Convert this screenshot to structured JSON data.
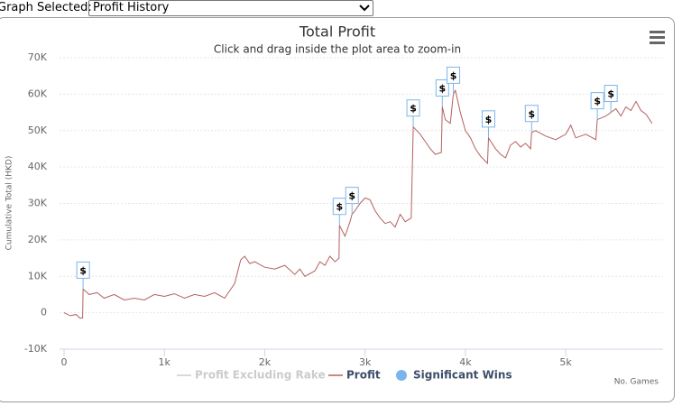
{
  "header": {
    "label": "Graph Selected:",
    "selected": "Profit History"
  },
  "chart_data": {
    "type": "line",
    "title": "Total Profit",
    "subtitle": "Click and drag inside the plot area to zoom-in",
    "ylabel": "Cumulative Total (HKD)",
    "xlabel": "No. Games",
    "xlim": [
      -45,
      5970
    ],
    "ylim": [
      -10000,
      70000
    ],
    "yticks": [
      {
        "value": -10000,
        "label": "-10K"
      },
      0,
      {
        "value": 10000,
        "label": "10K"
      },
      {
        "value": 20000,
        "label": "20K"
      },
      {
        "value": 30000,
        "label": "30K"
      },
      {
        "value": 40000,
        "label": "40K"
      },
      {
        "value": 50000,
        "label": "50K"
      },
      {
        "value": 60000,
        "label": "60K"
      },
      {
        "value": 70000,
        "label": "70K"
      }
    ],
    "xticks": [
      0,
      {
        "value": 1000,
        "label": "1k"
      },
      {
        "value": 2000,
        "label": "2k"
      },
      {
        "value": 3000,
        "label": "3k"
      },
      {
        "value": 4000,
        "label": "4k"
      },
      {
        "value": 5000,
        "label": "5k"
      }
    ],
    "grid": true,
    "series": [
      {
        "name": "Profit Excluding Rake",
        "color": "#cccccc",
        "hidden": true
      },
      {
        "name": "Profit",
        "color": "#b5605f",
        "x": [
          0,
          60,
          120,
          160,
          185,
          190,
          250,
          330,
          400,
          500,
          600,
          700,
          800,
          900,
          1000,
          1100,
          1200,
          1300,
          1400,
          1500,
          1600,
          1650,
          1700,
          1760,
          1800,
          1850,
          1900,
          2000,
          2100,
          2200,
          2300,
          2350,
          2400,
          2500,
          2550,
          2600,
          2650,
          2700,
          2740,
          2745,
          2800,
          2850,
          2870,
          2900,
          2950,
          3000,
          3050,
          3100,
          3150,
          3200,
          3250,
          3300,
          3350,
          3400,
          3460,
          3480,
          3550,
          3600,
          3650,
          3700,
          3760,
          3770,
          3800,
          3850,
          3880,
          3900,
          3950,
          4000,
          4050,
          4100,
          4150,
          4220,
          4230,
          4300,
          4350,
          4400,
          4450,
          4500,
          4550,
          4600,
          4650,
          4660,
          4700,
          4800,
          4900,
          5000,
          5050,
          5100,
          5200,
          5300,
          5315,
          5400,
          5450,
          5500,
          5550,
          5600,
          5650,
          5700,
          5750,
          5800,
          5860
        ],
        "values": [
          0,
          -800,
          -500,
          -1500,
          -1400,
          6500,
          5000,
          5500,
          4000,
          5000,
          3500,
          4000,
          3500,
          5000,
          4500,
          5200,
          4000,
          5000,
          4500,
          5500,
          4000,
          6000,
          8000,
          14500,
          15500,
          13500,
          14000,
          12500,
          12000,
          13000,
          10500,
          12000,
          10000,
          11500,
          14000,
          13000,
          15500,
          14000,
          15000,
          24000,
          21000,
          25000,
          27000,
          28000,
          30000,
          31500,
          31000,
          28000,
          26000,
          24500,
          25000,
          23500,
          27000,
          25000,
          26000,
          51000,
          49000,
          47000,
          45000,
          43500,
          44000,
          56500,
          53000,
          52000,
          60000,
          61000,
          55000,
          50000,
          48000,
          45000,
          43000,
          41000,
          48000,
          45000,
          43500,
          42500,
          46000,
          47000,
          45500,
          46500,
          45000,
          49500,
          50000,
          48500,
          47500,
          49000,
          51500,
          48000,
          49000,
          47500,
          53000,
          54000,
          55000,
          56000,
          54000,
          56500,
          55500,
          58000,
          55500,
          54500,
          52000
        ]
      },
      {
        "name": "Significant Wins",
        "type": "flags",
        "color": "#7cb5ec",
        "flag_label": "$",
        "x": [
          190,
          2745,
          2870,
          3480,
          3770,
          3880,
          4230,
          4660,
          5315,
          5450
        ],
        "values": [
          6500,
          24000,
          27000,
          51000,
          56500,
          60000,
          48000,
          49500,
          53000,
          55000
        ]
      }
    ]
  }
}
